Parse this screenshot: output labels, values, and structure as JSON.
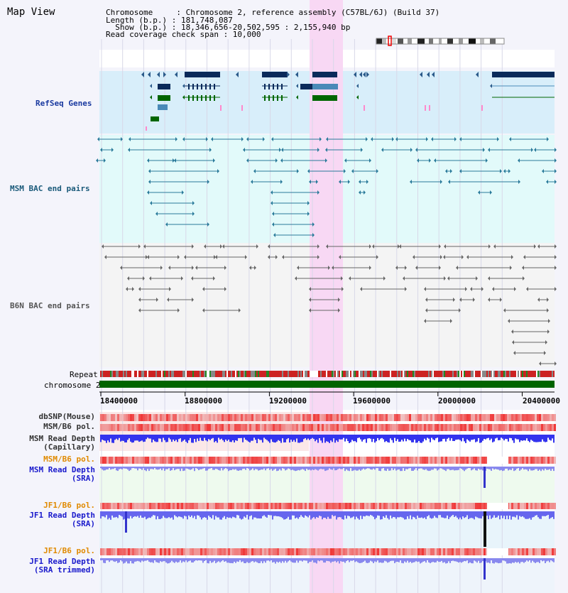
{
  "header": {
    "title": "Map View",
    "info_lines": [
      "Chromosome     : Chromosome 2, reference assembly (C57BL/6J) (Build 37)",
      "Length (b.p.) : 181,748,087",
      "  Show (b.p.) : 18,346,656-20,502,595 : 2,155,940 bp",
      "Read coverage check span : 10,000"
    ]
  },
  "tracks": {
    "refseq": "RefSeq Genes",
    "msm_bac": "MSM BAC end pairs",
    "b6n_bac": "B6N BAC end pairs",
    "repeat": "Repeat",
    "chromosome": "chromosome 2"
  },
  "axis": {
    "ticks": [
      "18400000",
      "18800000",
      "19200000",
      "19600000",
      "20000000",
      "20400000"
    ]
  },
  "lower_tracks": [
    {
      "id": "dbsnp",
      "lines": [
        "dbSNP(Mouse)"
      ],
      "color": "#333333"
    },
    {
      "id": "msm_b6_pol_1",
      "lines": [
        "MSM/B6 pol."
      ],
      "color": "#333333"
    },
    {
      "id": "msm_depth_cap",
      "lines": [
        "MSM Read Depth",
        "(Capillary)"
      ],
      "color": "#333333"
    },
    {
      "id": "msm_b6_pol_2",
      "lines": [
        "MSM/B6 pol."
      ],
      "color": "#e08a00"
    },
    {
      "id": "msm_depth_sra",
      "lines": [
        "MSM Read Depth",
        "(SRA)"
      ],
      "color": "#1a1acc"
    },
    {
      "id": "jf1_b6_pol_1",
      "lines": [
        "JF1/B6 pol."
      ],
      "color": "#e08a00"
    },
    {
      "id": "jf1_depth_sra",
      "lines": [
        "JF1 Read Depth",
        "(SRA)"
      ],
      "color": "#1a1acc"
    },
    {
      "id": "jf1_b6_pol_2",
      "lines": [
        "JF1/B6 pol."
      ],
      "color": "#e08a00"
    },
    {
      "id": "jf1_depth_trim",
      "lines": [
        "JF1 Read Depth",
        "(SRA trimmed)"
      ],
      "color": "#1a1acc"
    }
  ],
  "colors": {
    "refseq_bg": "#d8eefa",
    "bac_bg": "#e2fafa",
    "highlight": "#f8d8f4",
    "gene_dark": "#0a2a5a",
    "gene_green": "#006600",
    "repeat_red": "#cc2222",
    "chromosome_green": "#006400",
    "snp_red": "#ee4444",
    "depth_blue": "#3333ee",
    "depth_light": "#8888ee"
  }
}
